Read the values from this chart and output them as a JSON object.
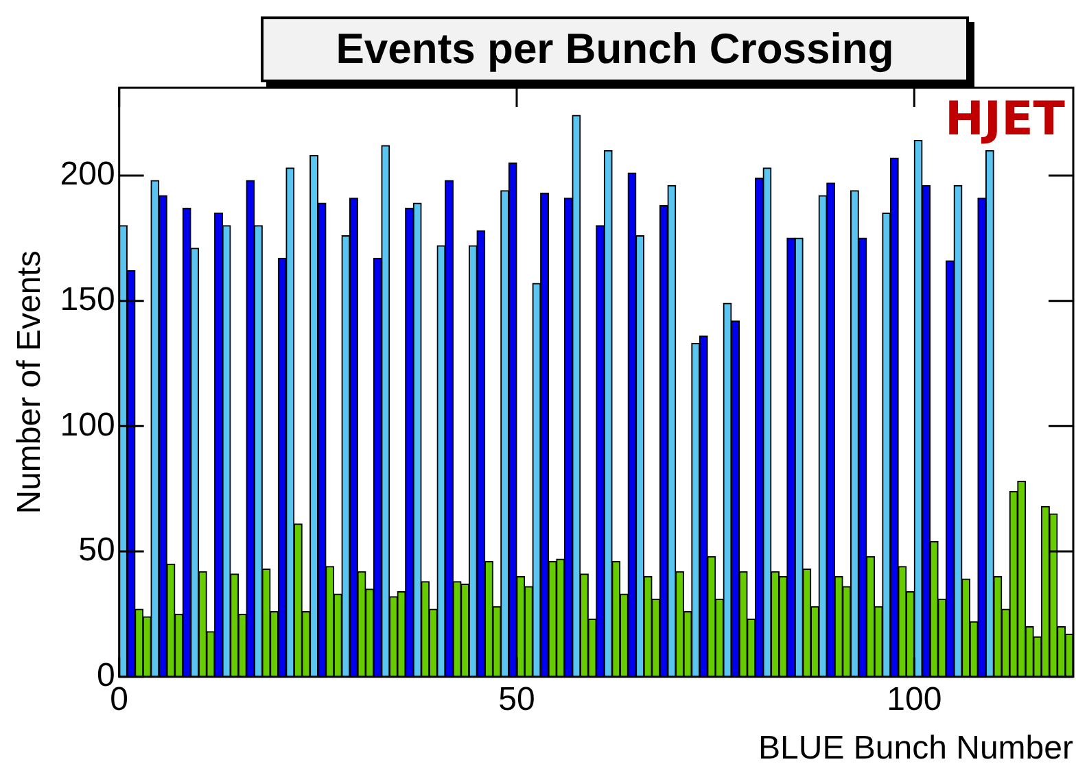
{
  "chart_data": {
    "type": "histogram",
    "title": "Events per Bunch Crossing",
    "xlabel": "BLUE Bunch Number",
    "ylabel": "Number of Events",
    "annotations": [
      "HJET"
    ],
    "bins": [
      0,
      1,
      2,
      3,
      4,
      5,
      6,
      7,
      8,
      9,
      10,
      11,
      12,
      13,
      14,
      15,
      16,
      17,
      18,
      19,
      20,
      21,
      22,
      23,
      24,
      25,
      26,
      27,
      28,
      29,
      30,
      31,
      32,
      33,
      34,
      35,
      36,
      37,
      38,
      39,
      40,
      41,
      42,
      43,
      44,
      45,
      46,
      47,
      48,
      49,
      50,
      51,
      52,
      53,
      54,
      55,
      56,
      57,
      58,
      59,
      60,
      61,
      62,
      63,
      64,
      65,
      66,
      67,
      68,
      69,
      70,
      71,
      72,
      73,
      74,
      75,
      76,
      77,
      78,
      79,
      80,
      81,
      82,
      83,
      84,
      85,
      86,
      87,
      88,
      89,
      90,
      91,
      92,
      93,
      94,
      95,
      96,
      97,
      98,
      99,
      100,
      101,
      102,
      103,
      104,
      105,
      106,
      107,
      108,
      109,
      110,
      111,
      112,
      113,
      114,
      115,
      116,
      117,
      118,
      119,
      120
    ],
    "series": [
      {
        "color": "#5bc5f2",
        "values": [
          180,
          null,
          null,
          null,
          198,
          null,
          null,
          null,
          null,
          171,
          null,
          null,
          null,
          180,
          null,
          null,
          null,
          180,
          null,
          null,
          null,
          203,
          null,
          null,
          208,
          null,
          null,
          null,
          176,
          null,
          null,
          null,
          null,
          212,
          null,
          null,
          null,
          189,
          null,
          null,
          172,
          null,
          null,
          null,
          172,
          null,
          null,
          null,
          194,
          null,
          null,
          null,
          157,
          null,
          null,
          null,
          null,
          224,
          null,
          null,
          null,
          210,
          null,
          null,
          null,
          176,
          null,
          null,
          null,
          196,
          null,
          null,
          133,
          null,
          null,
          null,
          149,
          null,
          null,
          null,
          null,
          203,
          null,
          null,
          null,
          175,
          null,
          null,
          192,
          null,
          null,
          null,
          194,
          null,
          null,
          null,
          185,
          null,
          null,
          null,
          214,
          null,
          null,
          null,
          null,
          196,
          null,
          null,
          null,
          210,
          null,
          null,
          null,
          null,
          null,
          null,
          null,
          null,
          null,
          null
        ]
      },
      {
        "color": "#0000f0",
        "values": [
          null,
          162,
          null,
          null,
          null,
          192,
          null,
          null,
          187,
          null,
          null,
          null,
          185,
          null,
          null,
          null,
          198,
          null,
          null,
          null,
          167,
          null,
          null,
          null,
          null,
          189,
          null,
          null,
          null,
          191,
          null,
          null,
          167,
          null,
          null,
          null,
          187,
          null,
          null,
          null,
          null,
          198,
          null,
          null,
          null,
          178,
          null,
          null,
          null,
          205,
          null,
          null,
          null,
          193,
          null,
          null,
          191,
          null,
          null,
          null,
          180,
          null,
          null,
          null,
          201,
          null,
          null,
          null,
          188,
          null,
          null,
          null,
          null,
          136,
          null,
          null,
          null,
          142,
          null,
          null,
          199,
          null,
          null,
          null,
          175,
          null,
          null,
          null,
          null,
          197,
          null,
          null,
          null,
          175,
          null,
          null,
          null,
          207,
          null,
          null,
          null,
          196,
          null,
          null,
          166,
          null,
          null,
          null,
          191,
          null,
          null,
          null,
          null,
          null,
          null,
          null,
          null,
          null,
          null,
          null
        ]
      },
      {
        "color": "#66cc00",
        "values": [
          null,
          null,
          27,
          24,
          null,
          null,
          45,
          25,
          null,
          null,
          42,
          18,
          null,
          null,
          41,
          25,
          null,
          null,
          43,
          26,
          null,
          null,
          61,
          26,
          null,
          null,
          44,
          33,
          null,
          null,
          42,
          35,
          null,
          null,
          32,
          34,
          null,
          null,
          38,
          27,
          null,
          null,
          38,
          37,
          null,
          null,
          46,
          28,
          null,
          null,
          40,
          36,
          null,
          null,
          46,
          47,
          null,
          null,
          41,
          23,
          null,
          null,
          46,
          33,
          null,
          null,
          40,
          31,
          null,
          null,
          42,
          26,
          null,
          null,
          48,
          31,
          null,
          null,
          42,
          23,
          null,
          null,
          42,
          40,
          null,
          null,
          43,
          28,
          null,
          null,
          40,
          36,
          null,
          null,
          48,
          28,
          null,
          null,
          44,
          34,
          null,
          null,
          54,
          31,
          null,
          null,
          39,
          22,
          null,
          null,
          40,
          27,
          74,
          78,
          20,
          16,
          68,
          65,
          20,
          17
        ]
      }
    ],
    "xlim": [
      0,
      120
    ],
    "xticks": [
      0,
      50,
      100
    ],
    "ylim": [
      0,
      235
    ],
    "yticks": [
      0,
      50,
      100,
      150,
      200
    ]
  }
}
